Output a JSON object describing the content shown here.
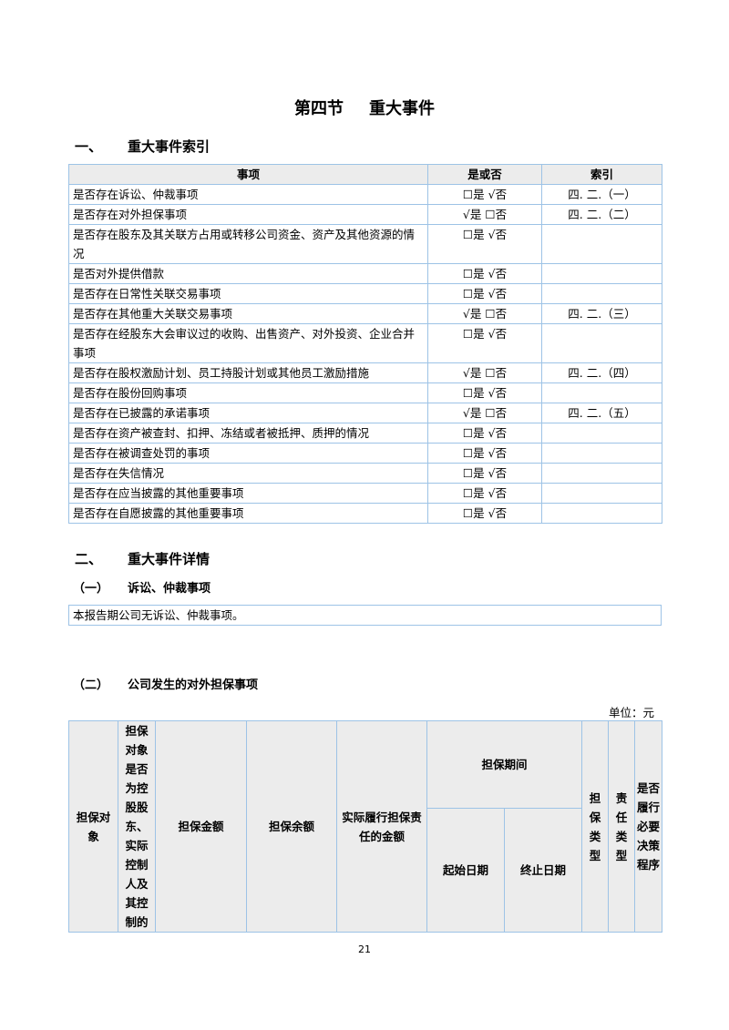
{
  "section_title": {
    "num": "第四节",
    "name": "重大事件"
  },
  "part1": {
    "num": "一、",
    "title": "重大事件索引"
  },
  "index_table": {
    "headers": [
      "事项",
      "是或否",
      "索引"
    ],
    "rows": [
      {
        "item": "是否存在诉讼、仲裁事项",
        "yn": "☐是 √否",
        "ref": "四. 二.（一）"
      },
      {
        "item": "是否存在对外担保事项",
        "yn": "√是 ☐否",
        "ref": "四. 二.（二）"
      },
      {
        "item": "是否存在股东及其关联方占用或转移公司资金、资产及其他资源的情况",
        "yn": "☐是 √否",
        "ref": ""
      },
      {
        "item": "是否对外提供借款",
        "yn": "☐是 √否",
        "ref": ""
      },
      {
        "item": "是否存在日常性关联交易事项",
        "yn": "☐是 √否",
        "ref": ""
      },
      {
        "item": "是否存在其他重大关联交易事项",
        "yn": "√是 ☐否",
        "ref": "四. 二.（三）"
      },
      {
        "item": "是否存在经股东大会审议过的收购、出售资产、对外投资、企业合并事项",
        "yn": "☐是 √否",
        "ref": ""
      },
      {
        "item": "是否存在股权激励计划、员工持股计划或其他员工激励措施",
        "yn": "√是 ☐否",
        "ref": "四. 二.（四）"
      },
      {
        "item": "是否存在股份回购事项",
        "yn": "☐是 √否",
        "ref": ""
      },
      {
        "item": "是否存在已披露的承诺事项",
        "yn": "√是 ☐否",
        "ref": "四. 二.（五）"
      },
      {
        "item": "是否存在资产被查封、扣押、冻结或者被抵押、质押的情况",
        "yn": "☐是 √否",
        "ref": ""
      },
      {
        "item": "是否存在被调查处罚的事项",
        "yn": "☐是 √否",
        "ref": ""
      },
      {
        "item": "是否存在失信情况",
        "yn": "☐是 √否",
        "ref": ""
      },
      {
        "item": "是否存在应当披露的其他重要事项",
        "yn": "☐是 √否",
        "ref": ""
      },
      {
        "item": "是否存在自愿披露的其他重要事项",
        "yn": "☐是 √否",
        "ref": ""
      }
    ]
  },
  "part2": {
    "num": "二、",
    "title": "重大事件详情"
  },
  "sub1": {
    "num": "（一）",
    "title": "诉讼、仲裁事项",
    "body": "本报告期公司无诉讼、仲裁事项。"
  },
  "sub2": {
    "num": "（二）",
    "title": "公司发生的对外担保事项",
    "unit": "单位：元"
  },
  "guarantee_table": {
    "h_target": "担保对象",
    "h_related": "担保对象是否为控股股东、实际控制人及其控制的",
    "h_amount": "担保金额",
    "h_balance": "担保余额",
    "h_actual": "实际履行担保责任的金额",
    "h_period": "担保期间",
    "h_start": "起始日期",
    "h_end": "终止日期",
    "h_type": "担保类型",
    "h_liability": "责任类型",
    "h_procedure": "是否履行必要决策程序"
  },
  "page_number": "21"
}
